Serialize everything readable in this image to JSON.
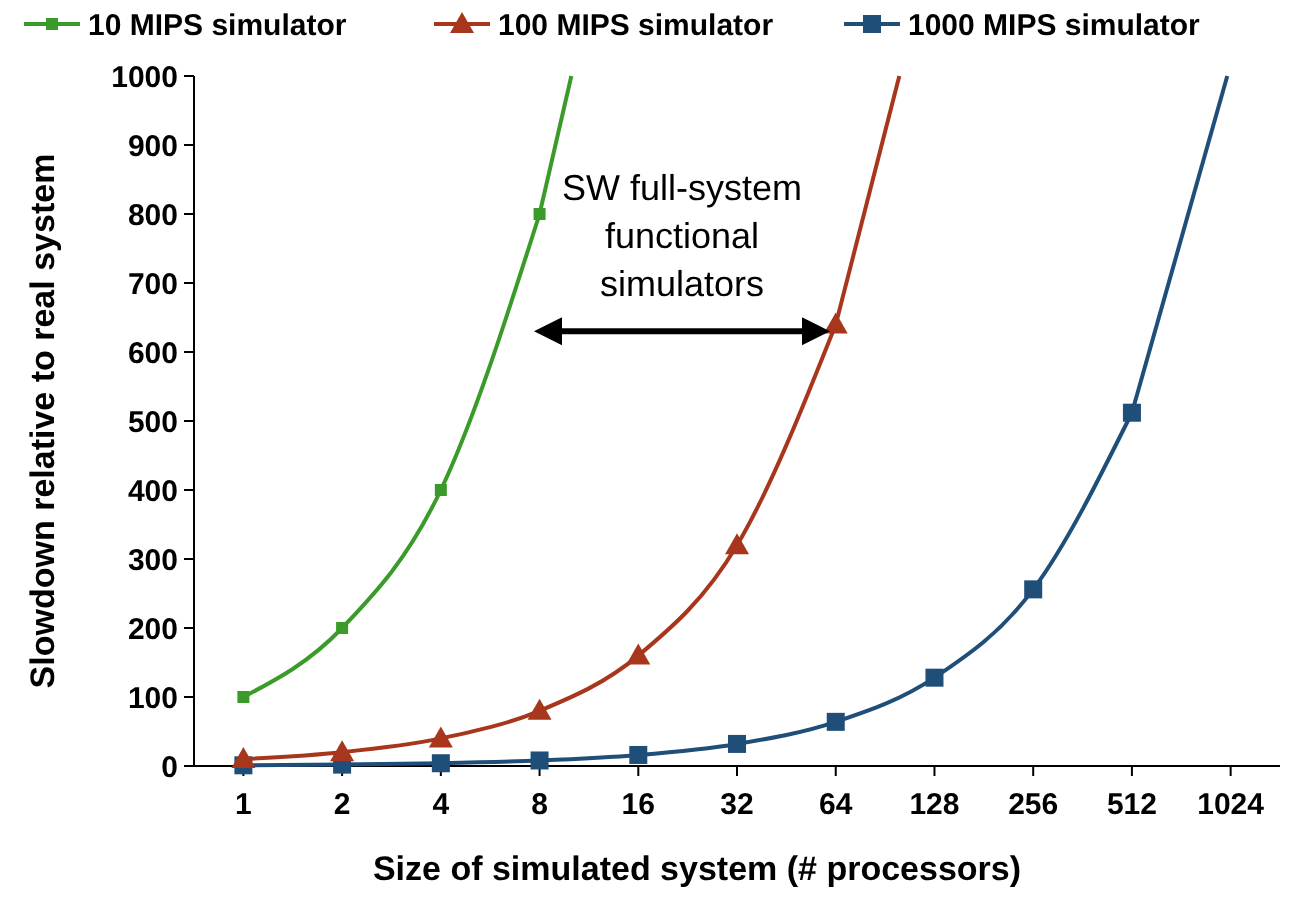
{
  "chart_data": {
    "type": "line",
    "xlabel": "Size of simulated system (# processors)",
    "ylabel": "Slowdown relative to real system",
    "log": "x",
    "xlim": [
      0.707,
      1448
    ],
    "xticks": [
      1,
      2,
      4,
      8,
      16,
      32,
      64,
      128,
      256,
      512,
      1024
    ],
    "ylim": [
      0,
      1000
    ],
    "yticks": [
      0,
      100,
      200,
      300,
      400,
      500,
      600,
      700,
      800,
      900,
      1000
    ],
    "grid": false,
    "legend": "top",
    "annotations": [
      "SW full-system functional simulators"
    ],
    "series": [
      {
        "name": "10 MIPS simulator",
        "color": "#3a9b2a",
        "marker": "square",
        "x": [
          1,
          2,
          4,
          8
        ],
        "values": [
          100,
          200,
          400,
          800
        ]
      },
      {
        "color": "#3a9b2a",
        "marker": "none",
        "x": [
          8,
          10
        ],
        "values": [
          800,
          1000
        ]
      },
      {
        "name": "100 MIPS simulator",
        "color": "#a8361c",
        "marker": "triangle",
        "x": [
          1,
          2,
          4,
          8,
          16,
          32,
          64
        ],
        "values": [
          10,
          20,
          40,
          80,
          160,
          320,
          640
        ]
      },
      {
        "color": "#a8361c",
        "marker": "none",
        "x": [
          64,
          100
        ],
        "values": [
          640,
          1000
        ]
      },
      {
        "name": "1000 MIPS simulator",
        "color": "#1f4e79",
        "marker": "square",
        "x": [
          1,
          2,
          4,
          8,
          16,
          32,
          64,
          128,
          256,
          512
        ],
        "values": [
          1,
          2,
          4,
          8,
          16,
          32,
          64,
          128,
          256,
          512
        ]
      },
      {
        "color": "#1f4e79",
        "marker": "none",
        "x": [
          512,
          1000
        ],
        "values": [
          512,
          1000
        ]
      }
    ]
  }
}
